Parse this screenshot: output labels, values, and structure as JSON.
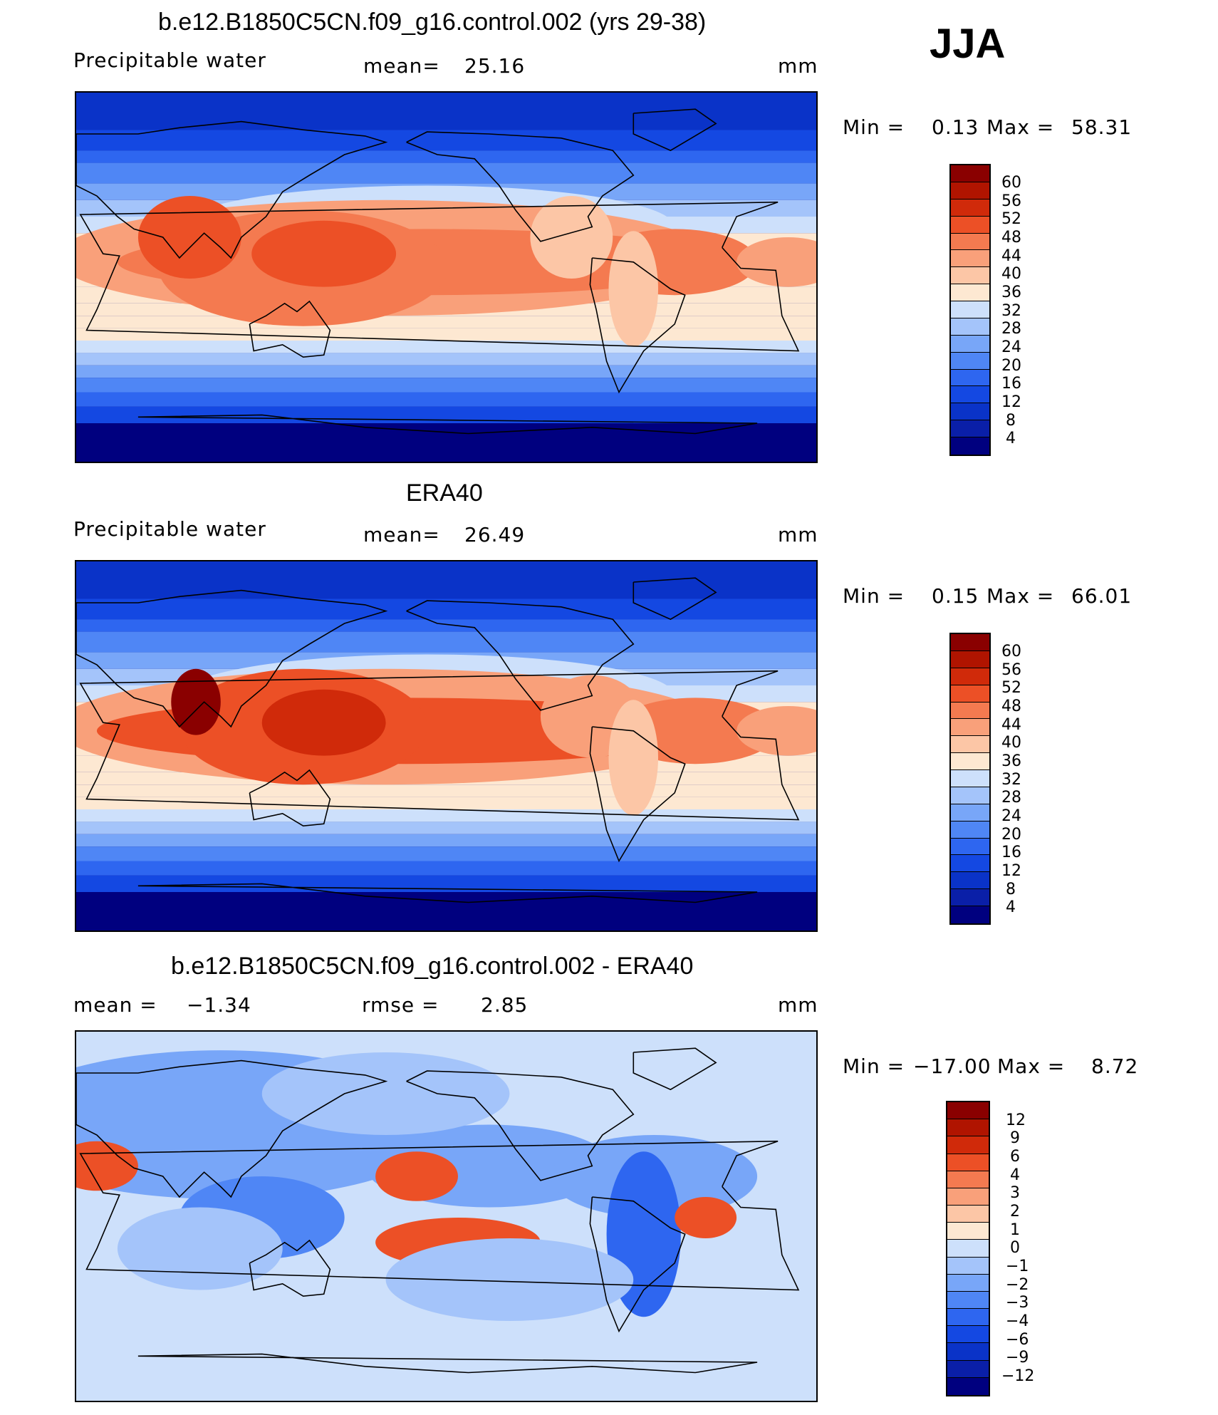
{
  "season": "JJA",
  "colors": {
    "levels": [
      "#00007f",
      "#0a1fa8",
      "#0a33c8",
      "#1448e2",
      "#2e66f0",
      "#4f86f5",
      "#78a6f8",
      "#a4c4fa",
      "#cde0fb",
      "#fde8d2",
      "#fcc6a6",
      "#f9a07a",
      "#f47a50",
      "#ec5026",
      "#d02a0a",
      "#b01400",
      "#8a0000"
    ],
    "land_outline": "#000000"
  },
  "panels": [
    {
      "title": "b.e12.B1850C5CN.f09_g16.control.002 (yrs 29-38)",
      "variable": "Precipitable  water",
      "stat1_label": "mean=",
      "stat1_value": "25.16",
      "stat2_label": "",
      "stat2_value": "",
      "units": "mm",
      "minmax_label": "Min  =",
      "min_value": "0.13",
      "max_label": "Max  =",
      "max_value": "58.31",
      "cbar_labels": [
        "60",
        "56",
        "52",
        "48",
        "44",
        "40",
        "36",
        "32",
        "28",
        "24",
        "20",
        "16",
        "12",
        "8",
        "4"
      ]
    },
    {
      "title": "ERA40",
      "variable": "Precipitable  water",
      "stat1_label": "mean=",
      "stat1_value": "26.49",
      "stat2_label": "",
      "stat2_value": "",
      "units": "mm",
      "minmax_label": "Min  =",
      "min_value": "0.15",
      "max_label": "Max  =",
      "max_value": "66.01",
      "cbar_labels": [
        "60",
        "56",
        "52",
        "48",
        "44",
        "40",
        "36",
        "32",
        "28",
        "24",
        "20",
        "16",
        "12",
        "8",
        "4"
      ]
    },
    {
      "title": "b.e12.B1850C5CN.f09_g16.control.002 - ERA40",
      "variable": "",
      "stat1_label": "mean  =",
      "stat1_value": "−1.34",
      "stat2_label": "rmse  =",
      "stat2_value": "2.85",
      "units": "mm",
      "minmax_label": "Min  =",
      "min_value": "−17.00",
      "max_label": "Max  =",
      "max_value": "8.72",
      "cbar_labels": [
        "12",
        "9",
        "6",
        "4",
        "3",
        "2",
        "1",
        "0",
        "−1",
        "−2",
        "−3",
        "−4",
        "−6",
        "−9",
        "−12"
      ]
    }
  ]
}
